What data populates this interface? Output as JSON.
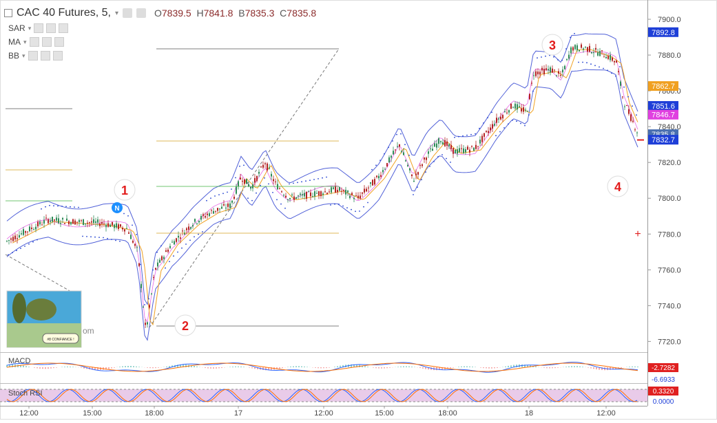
{
  "header": {
    "symbol": "CAC 40 Futures, 5,",
    "open_label": "O",
    "open": "7839.5",
    "high_label": "H",
    "high": "7841.8",
    "low_label": "B",
    "low": "7835.3",
    "close_label": "C",
    "close": "7835.8"
  },
  "indicators": [
    {
      "label": "SAR"
    },
    {
      "label": "MA"
    },
    {
      "label": "BB"
    }
  ],
  "price_axis": {
    "ticks": [
      "7900.0",
      "7880.0",
      "7860.0",
      "7840.0",
      "7820.0",
      "7800.0",
      "7780.0",
      "7760.0",
      "7740.0",
      "7720.0"
    ],
    "tick_values": [
      7900,
      7880,
      7860,
      7840,
      7820,
      7800,
      7780,
      7760,
      7740,
      7720
    ],
    "ylim": [
      7714,
      7910
    ]
  },
  "price_labels": [
    {
      "text": "7892.8",
      "value": 7892.8,
      "color": "#1e3fd8"
    },
    {
      "text": "7862.7",
      "value": 7862.7,
      "color": "#f0a020"
    },
    {
      "text": "7851.6",
      "value": 7851.6,
      "color": "#1e3fd8"
    },
    {
      "text": "7846.7",
      "value": 7846.7,
      "color": "#e040e0"
    },
    {
      "text": "7835.8",
      "value": 7835.8,
      "color": "#4a6fb0"
    },
    {
      "text": "7832.7",
      "value": 7832.7,
      "color": "#1e3fd8"
    }
  ],
  "time_axis": {
    "labels": [
      "12:00",
      "15:00",
      "18:00",
      "17",
      "12:00",
      "15:00",
      "18:00",
      "18",
      "12:00"
    ]
  },
  "annotations": [
    {
      "text": "1"
    },
    {
      "text": "2"
    },
    {
      "text": "3"
    },
    {
      "text": "4"
    }
  ],
  "news_marker": {
    "text": "N"
  },
  "watermark": "om",
  "sticker_text": "#8 CONFIANCE !",
  "macd": {
    "label": "MACD",
    "value1": "-2.7282",
    "value2": "-6.6933",
    "value1_color": "#e02020",
    "value2_color": "#1e3fd8"
  },
  "stoch": {
    "label": "Stoch RSI",
    "value1": "0.3320",
    "value2": "0.0000",
    "value1_color": "#e02020",
    "value2_color": "#1e3fd8"
  },
  "colors": {
    "bull": "#2e8b57",
    "bear": "#b22222",
    "bb": "#5060d8",
    "ma": "#f0a020",
    "sar": "#2040d0",
    "gann_yellow": "#d4a020",
    "gann_green": "#40b040",
    "stoch_fill": "#e9cbe9"
  }
}
